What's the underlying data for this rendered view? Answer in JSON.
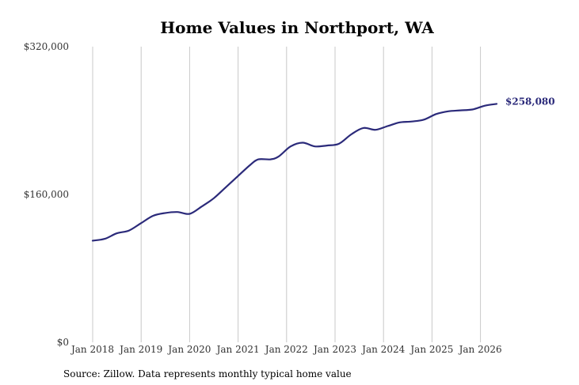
{
  "chart_data": {
    "type": "line",
    "title": "Home Values in Northport, WA",
    "source": "Source: Zillow. Data represents monthly typical home value",
    "xlabel": "",
    "ylabel": "",
    "ylim": [
      0,
      320000
    ],
    "y_ticks": [
      0,
      160000,
      320000
    ],
    "y_tick_labels": [
      "$0",
      "$160,000",
      "$320,000"
    ],
    "x_tick_labels": [
      "Jan 2018",
      "Jan 2019",
      "Jan 2020",
      "Jan 2021",
      "Jan 2022",
      "Jan 2023",
      "Jan 2024",
      "Jan 2025",
      "Jan 2026"
    ],
    "grid": "vertical",
    "line_color": "#2b2a7a",
    "grid_color": "#c8c8c8",
    "end_label": "$258,080",
    "series": [
      {
        "x": [
          "2018-01",
          "2018-04",
          "2018-07",
          "2018-10",
          "2019-01",
          "2019-04",
          "2019-07",
          "2019-10",
          "2020-01",
          "2020-04",
          "2020-07",
          "2020-10",
          "2021-01",
          "2021-04",
          "2021-06",
          "2021-09",
          "2021-11",
          "2022-02",
          "2022-05",
          "2022-08",
          "2022-11",
          "2023-02",
          "2023-05",
          "2023-08",
          "2023-11",
          "2024-02",
          "2024-05",
          "2024-08",
          "2024-11",
          "2025-02",
          "2025-05",
          "2025-08",
          "2025-11",
          "2026-02",
          "2026-05"
        ],
        "values": [
          110000,
          112000,
          118000,
          121000,
          129000,
          137000,
          140000,
          141000,
          139000,
          147000,
          156000,
          168000,
          180000,
          192000,
          198000,
          198000,
          201000,
          212000,
          216000,
          212000,
          213000,
          215000,
          225000,
          232000,
          230000,
          234000,
          238000,
          239000,
          241000,
          247000,
          250000,
          251000,
          252000,
          256000,
          258080
        ]
      }
    ]
  }
}
